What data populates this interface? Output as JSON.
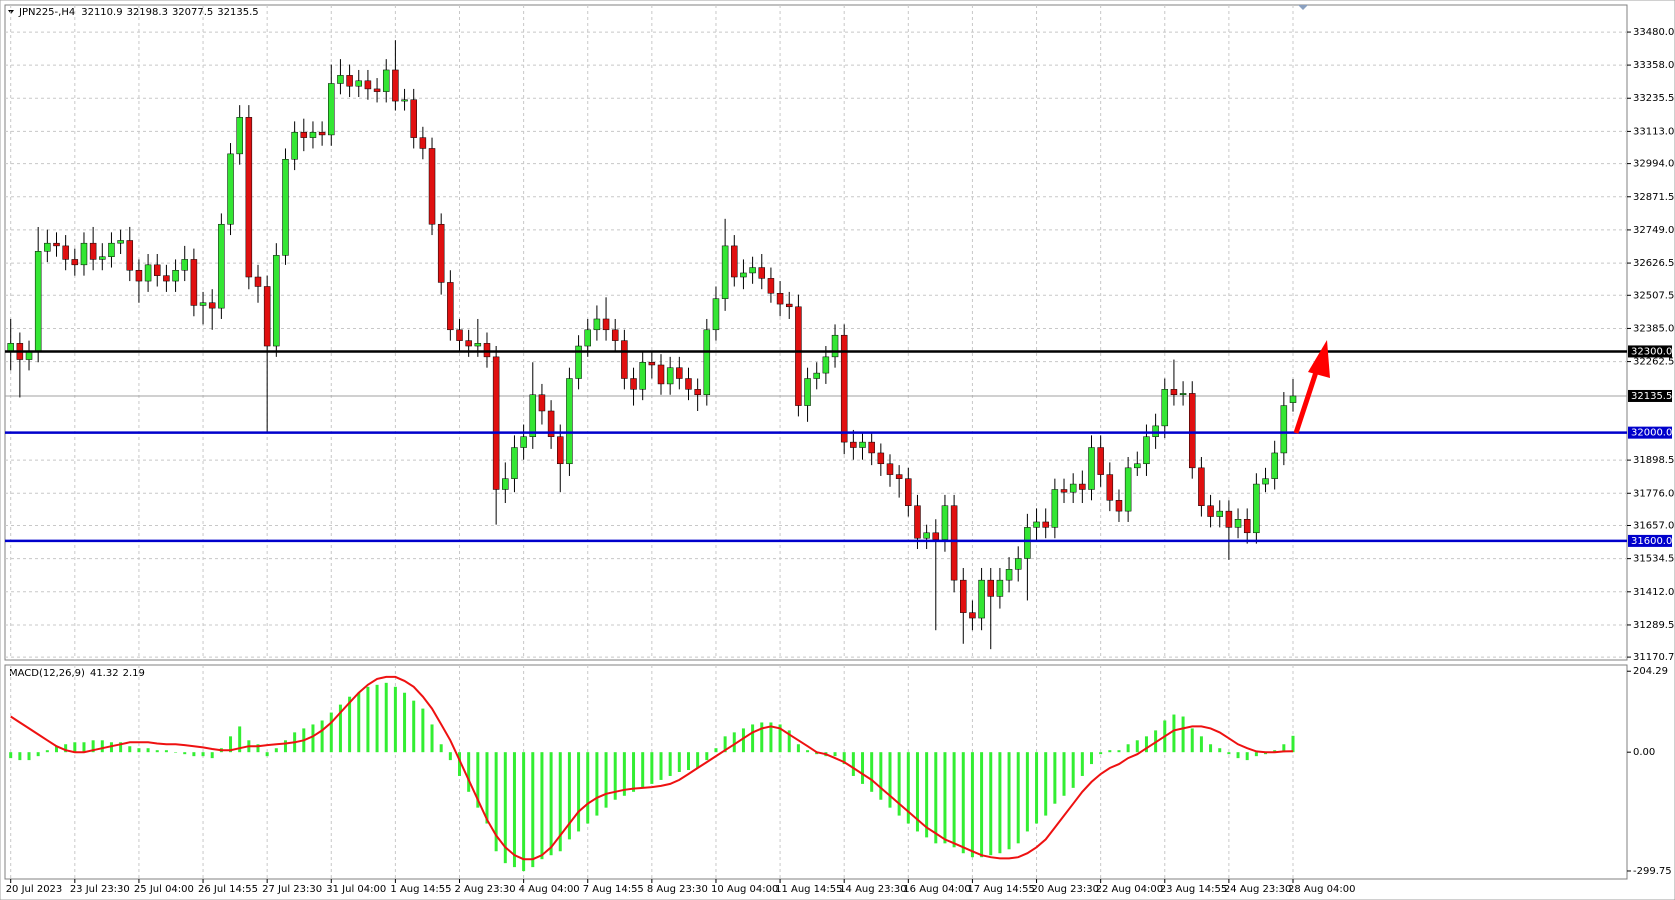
{
  "chart_data": [
    {
      "type": "candlestick",
      "title": "JPN225-,H4",
      "categories": [
        "20 Jul 2023",
        null,
        null,
        null,
        null,
        null,
        null,
        "23 Jul 23:30",
        null,
        null,
        null,
        null,
        null,
        null,
        "25 Jul 04:00",
        null,
        null,
        null,
        null,
        null,
        null,
        "26 Jul 14:55",
        null,
        null,
        null,
        null,
        null,
        null,
        "27 Jul 23:30",
        null,
        null,
        null,
        null,
        null,
        null,
        "31 Jul 04:00",
        null,
        null,
        null,
        null,
        null,
        null,
        "1 Aug 14:55",
        null,
        null,
        null,
        null,
        null,
        null,
        "2 Aug 23:30",
        null,
        null,
        null,
        null,
        null,
        null,
        "4 Aug 04:00",
        null,
        null,
        null,
        null,
        null,
        null,
        "7 Aug 14:55",
        null,
        null,
        null,
        null,
        null,
        null,
        "8 Aug 23:30",
        null,
        null,
        null,
        null,
        null,
        null,
        "10 Aug 04:00",
        null,
        null,
        null,
        null,
        null,
        null,
        "11 Aug 14:55",
        null,
        null,
        null,
        null,
        null,
        null,
        "14 Aug 23:30",
        null,
        null,
        null,
        null,
        null,
        null,
        "16 Aug 04:00",
        null,
        null,
        null,
        null,
        null,
        null,
        "17 Aug 14:55",
        null,
        null,
        null,
        null,
        null,
        null,
        "20 Aug 23:30",
        null,
        null,
        null,
        null,
        null,
        null,
        "22 Aug 04:00",
        null,
        null,
        null,
        null,
        null,
        null,
        "23 Aug 14:55",
        null,
        null,
        null,
        null,
        null,
        null,
        "24 Aug 23:30",
        null,
        null,
        null,
        null,
        null,
        null,
        "28 Aug 04:00"
      ],
      "open": [
        32300,
        32330,
        32270,
        32300,
        32670,
        32700,
        32690,
        32640,
        32620,
        32700,
        32640,
        32650,
        32700,
        32710,
        32600,
        32560,
        32620,
        32580,
        32560,
        32600,
        32640,
        32470,
        32480,
        32460,
        32770,
        33030,
        33165,
        32575,
        32540,
        32320,
        32655,
        33010,
        33110,
        33090,
        33110,
        33100,
        33290,
        33320,
        33280,
        33300,
        33270,
        33260,
        33340,
        33225,
        33230,
        33090,
        33050,
        32770,
        32555,
        32380,
        32340,
        32320,
        32330,
        32280,
        31790,
        31830,
        31945,
        31985,
        32140,
        32080,
        31985,
        31885,
        32200,
        32320,
        32380,
        32420,
        32380,
        32340,
        32200,
        32160,
        32260,
        32250,
        32180,
        32240,
        32200,
        32160,
        32140,
        32380,
        32495,
        32690,
        32575,
        32590,
        32610,
        32570,
        32515,
        32475,
        32465,
        32100,
        32200,
        32220,
        32280,
        32360,
        31965,
        31945,
        31965,
        31925,
        31885,
        31845,
        31830,
        31730,
        31610,
        31630,
        31605,
        31730,
        31455,
        31335,
        31315,
        31455,
        31395,
        31455,
        31495,
        31535,
        31650,
        31670,
        31650,
        31790,
        31780,
        31810,
        31790,
        31945,
        31845,
        31750,
        31710,
        31870,
        31885,
        31985,
        32025,
        32160,
        32140,
        32145,
        31870,
        31730,
        31690,
        31710,
        31650,
        31680,
        31630,
        31810,
        31830,
        31925,
        32110.9
      ],
      "high": [
        32420,
        32370,
        32340,
        32760,
        32750,
        32740,
        32730,
        32680,
        32740,
        32760,
        32700,
        32740,
        32750,
        32760,
        32640,
        32660,
        32660,
        32620,
        32640,
        32690,
        32680,
        32520,
        32530,
        32810,
        33070,
        33210,
        33210,
        32620,
        32580,
        32700,
        33050,
        33150,
        33160,
        33150,
        33150,
        33360,
        33380,
        33360,
        33340,
        33340,
        33310,
        33380,
        33450,
        33270,
        33270,
        33130,
        33090,
        32810,
        32600,
        32420,
        32380,
        32420,
        32370,
        32320,
        31890,
        31990,
        32030,
        32260,
        32180,
        32120,
        32030,
        32240,
        32360,
        32420,
        32470,
        32500,
        32420,
        32380,
        32240,
        32300,
        32300,
        32290,
        32280,
        32280,
        32240,
        32200,
        32420,
        32540,
        32790,
        32730,
        32640,
        32650,
        32660,
        32610,
        32560,
        32520,
        32510,
        32240,
        32260,
        32320,
        32400,
        32400,
        32010,
        32000,
        32000,
        31960,
        31920,
        31880,
        31870,
        31770,
        31660,
        31680,
        31770,
        31770,
        31500,
        31380,
        31500,
        31500,
        31500,
        31540,
        31580,
        31700,
        31720,
        31720,
        31830,
        31830,
        31850,
        31860,
        31990,
        31990,
        31890,
        31790,
        31910,
        31930,
        32030,
        32070,
        32200,
        32270,
        32190,
        32190,
        31910,
        31770,
        31750,
        31750,
        31720,
        31720,
        31850,
        31870,
        31970,
        32150,
        32198.3
      ],
      "low": [
        32230,
        32130,
        32230,
        32260,
        32630,
        32650,
        32600,
        32580,
        32580,
        32600,
        32600,
        32610,
        32660,
        32560,
        32480,
        32520,
        32540,
        32520,
        32520,
        32560,
        32430,
        32400,
        32380,
        32420,
        32730,
        32990,
        32530,
        32480,
        32000,
        32280,
        32620,
        32970,
        33040,
        33050,
        33060,
        33060,
        33250,
        33240,
        33240,
        33230,
        33220,
        33220,
        33190,
        33190,
        33050,
        33010,
        32730,
        32510,
        32340,
        32300,
        32280,
        32280,
        32240,
        31660,
        31740,
        31780,
        31900,
        31940,
        32030,
        31940,
        31780,
        31840,
        32160,
        32280,
        32340,
        32340,
        32300,
        32160,
        32100,
        32120,
        32200,
        32140,
        32140,
        32160,
        32120,
        32080,
        32100,
        32340,
        32450,
        32540,
        32530,
        32550,
        32530,
        32480,
        32430,
        32420,
        32060,
        32040,
        32160,
        32180,
        32240,
        31920,
        31900,
        31900,
        31880,
        31840,
        31800,
        31760,
        31690,
        31570,
        31570,
        31270,
        31560,
        31410,
        31220,
        31270,
        31270,
        31200,
        31350,
        31410,
        31450,
        31380,
        31600,
        31610,
        31610,
        31740,
        31740,
        31740,
        31750,
        31800,
        31710,
        31670,
        31670,
        31840,
        31840,
        31940,
        31980,
        32100,
        32100,
        31830,
        31690,
        31650,
        31650,
        31530,
        31610,
        31590,
        31590,
        31780,
        31790,
        31880,
        32077.5
      ],
      "close": [
        32330,
        32270,
        32300,
        32670,
        32700,
        32690,
        32640,
        32620,
        32700,
        32640,
        32650,
        32700,
        32710,
        32600,
        32560,
        32620,
        32580,
        32560,
        32600,
        32640,
        32470,
        32480,
        32460,
        32770,
        33030,
        33165,
        32575,
        32540,
        32320,
        32655,
        33010,
        33110,
        33090,
        33110,
        33100,
        33290,
        33320,
        33280,
        33300,
        33270,
        33260,
        33340,
        33225,
        33230,
        33090,
        33050,
        32770,
        32555,
        32380,
        32340,
        32320,
        32330,
        32280,
        31790,
        31830,
        31945,
        31985,
        32140,
        32080,
        31985,
        31885,
        32200,
        32320,
        32380,
        32420,
        32380,
        32340,
        32200,
        32160,
        32260,
        32250,
        32180,
        32240,
        32200,
        32160,
        32140,
        32380,
        32495,
        32690,
        32575,
        32590,
        32610,
        32570,
        32515,
        32475,
        32465,
        32100,
        32200,
        32220,
        32280,
        32360,
        31965,
        31945,
        31965,
        31925,
        31885,
        31845,
        31830,
        31730,
        31610,
        31630,
        31605,
        31730,
        31455,
        31335,
        31315,
        31455,
        31395,
        31455,
        31495,
        31535,
        31650,
        31670,
        31650,
        31790,
        31780,
        31810,
        31790,
        31945,
        31845,
        31750,
        31710,
        31870,
        31885,
        31985,
        32025,
        32160,
        32140,
        32145,
        31870,
        31730,
        31690,
        31710,
        31650,
        31680,
        31630,
        31810,
        31830,
        31925,
        32100,
        32135.5
      ],
      "up_color": "#33e633",
      "down_color": "#e01010",
      "ylim": [
        31160,
        33580
      ],
      "yticks": [
        {
          "value": 33480,
          "label": "33480.0"
        },
        {
          "value": 33358,
          "label": "33358.0"
        },
        {
          "value": 33235.5,
          "label": "33235.5"
        },
        {
          "value": 33113,
          "label": "33113.0"
        },
        {
          "value": 32994,
          "label": "32994.0"
        },
        {
          "value": 32871.5,
          "label": "32871.5"
        },
        {
          "value": 32749,
          "label": "32749.0"
        },
        {
          "value": 32626.5,
          "label": "32626.5"
        },
        {
          "value": 32507.5,
          "label": "32507.5"
        },
        {
          "value": 32385,
          "label": "32385.0"
        },
        {
          "value": 32262.5,
          "label": "32262.5"
        },
        {
          "value": 31898.5,
          "label": "31898.5"
        },
        {
          "value": 31776,
          "label": "31776.0"
        },
        {
          "value": 31657,
          "label": "31657.0"
        },
        {
          "value": 31534.5,
          "label": "31534.5"
        },
        {
          "value": 31412,
          "label": "31412.0"
        },
        {
          "value": 31289.5,
          "label": "31289.5"
        },
        {
          "value": 31170.7,
          "label": "31170.7"
        }
      ],
      "grid": true,
      "levels": [
        {
          "value": 32300,
          "label": "32300.0",
          "color": "#000000"
        },
        {
          "value": 32000,
          "label": "32000.0",
          "color": "#0000cc"
        },
        {
          "value": 31600,
          "label": "31600.0",
          "color": "#0000cc"
        }
      ],
      "current_price": {
        "value": 32135.5,
        "label": "32135.5"
      }
    },
    {
      "type": "macd",
      "title": "MACD(12,26,9)",
      "histogram": {
        "color": "#33ee33",
        "values": [
          -15,
          -20,
          -20,
          -10,
          5,
          15,
          20,
          25,
          25,
          30,
          30,
          25,
          25,
          15,
          10,
          10,
          5,
          5,
          0,
          -5,
          -10,
          -10,
          -15,
          10,
          40,
          65,
          30,
          20,
          -10,
          10,
          30,
          50,
          60,
          70,
          80,
          100,
          120,
          140,
          150,
          165,
          170,
          175,
          165,
          150,
          130,
          110,
          70,
          20,
          -20,
          -60,
          -100,
          -140,
          -180,
          -250,
          -280,
          -290,
          -300,
          -290,
          -270,
          -260,
          -250,
          -220,
          -200,
          -180,
          -160,
          -140,
          -120,
          -110,
          -100,
          -90,
          -80,
          -70,
          -60,
          -50,
          -45,
          -40,
          -20,
          10,
          40,
          50,
          60,
          70,
          75,
          75,
          70,
          55,
          20,
          5,
          -5,
          -10,
          -10,
          -30,
          -60,
          -80,
          -100,
          -120,
          -140,
          -160,
          -180,
          -200,
          -215,
          -230,
          -230,
          -240,
          -255,
          -265,
          -265,
          -260,
          -255,
          -245,
          -230,
          -200,
          -180,
          -160,
          -130,
          -110,
          -90,
          -60,
          -30,
          -5,
          5,
          5,
          20,
          30,
          40,
          55,
          80,
          95,
          90,
          60,
          40,
          20,
          10,
          -5,
          -15,
          -20,
          -10,
          -5,
          5,
          20,
          41.32
        ]
      },
      "signal": {
        "color": "#ee1111",
        "values": [
          90,
          75,
          60,
          45,
          30,
          15,
          5,
          0,
          0,
          5,
          10,
          15,
          20,
          25,
          25,
          25,
          22,
          20,
          20,
          18,
          15,
          12,
          8,
          5,
          5,
          10,
          15,
          15,
          18,
          20,
          22,
          25,
          30,
          40,
          55,
          75,
          100,
          125,
          150,
          170,
          185,
          190,
          190,
          180,
          165,
          140,
          110,
          70,
          30,
          -20,
          -70,
          -120,
          -170,
          -210,
          -240,
          -260,
          -270,
          -270,
          -260,
          -240,
          -210,
          -180,
          -150,
          -130,
          -115,
          -105,
          -100,
          -95,
          -92,
          -90,
          -88,
          -85,
          -80,
          -70,
          -55,
          -40,
          -25,
          -10,
          5,
          20,
          35,
          50,
          60,
          65,
          60,
          45,
          30,
          15,
          0,
          -5,
          -15,
          -25,
          -40,
          -55,
          -70,
          -90,
          -110,
          -130,
          -150,
          -170,
          -190,
          -205,
          -220,
          -230,
          -240,
          -250,
          -260,
          -265,
          -268,
          -268,
          -265,
          -255,
          -240,
          -220,
          -190,
          -160,
          -130,
          -100,
          -75,
          -55,
          -40,
          -30,
          -15,
          -5,
          10,
          25,
          40,
          55,
          60,
          65,
          65,
          60,
          50,
          35,
          20,
          10,
          2,
          0,
          0,
          2,
          2.19
        ]
      },
      "ylim": [
        -320,
        220
      ],
      "yticks": [
        {
          "value": 204.29,
          "label": "204.29"
        },
        {
          "value": 0,
          "label": "0.00"
        },
        {
          "value": -299.75,
          "label": "-299.75"
        }
      ]
    }
  ]
}
